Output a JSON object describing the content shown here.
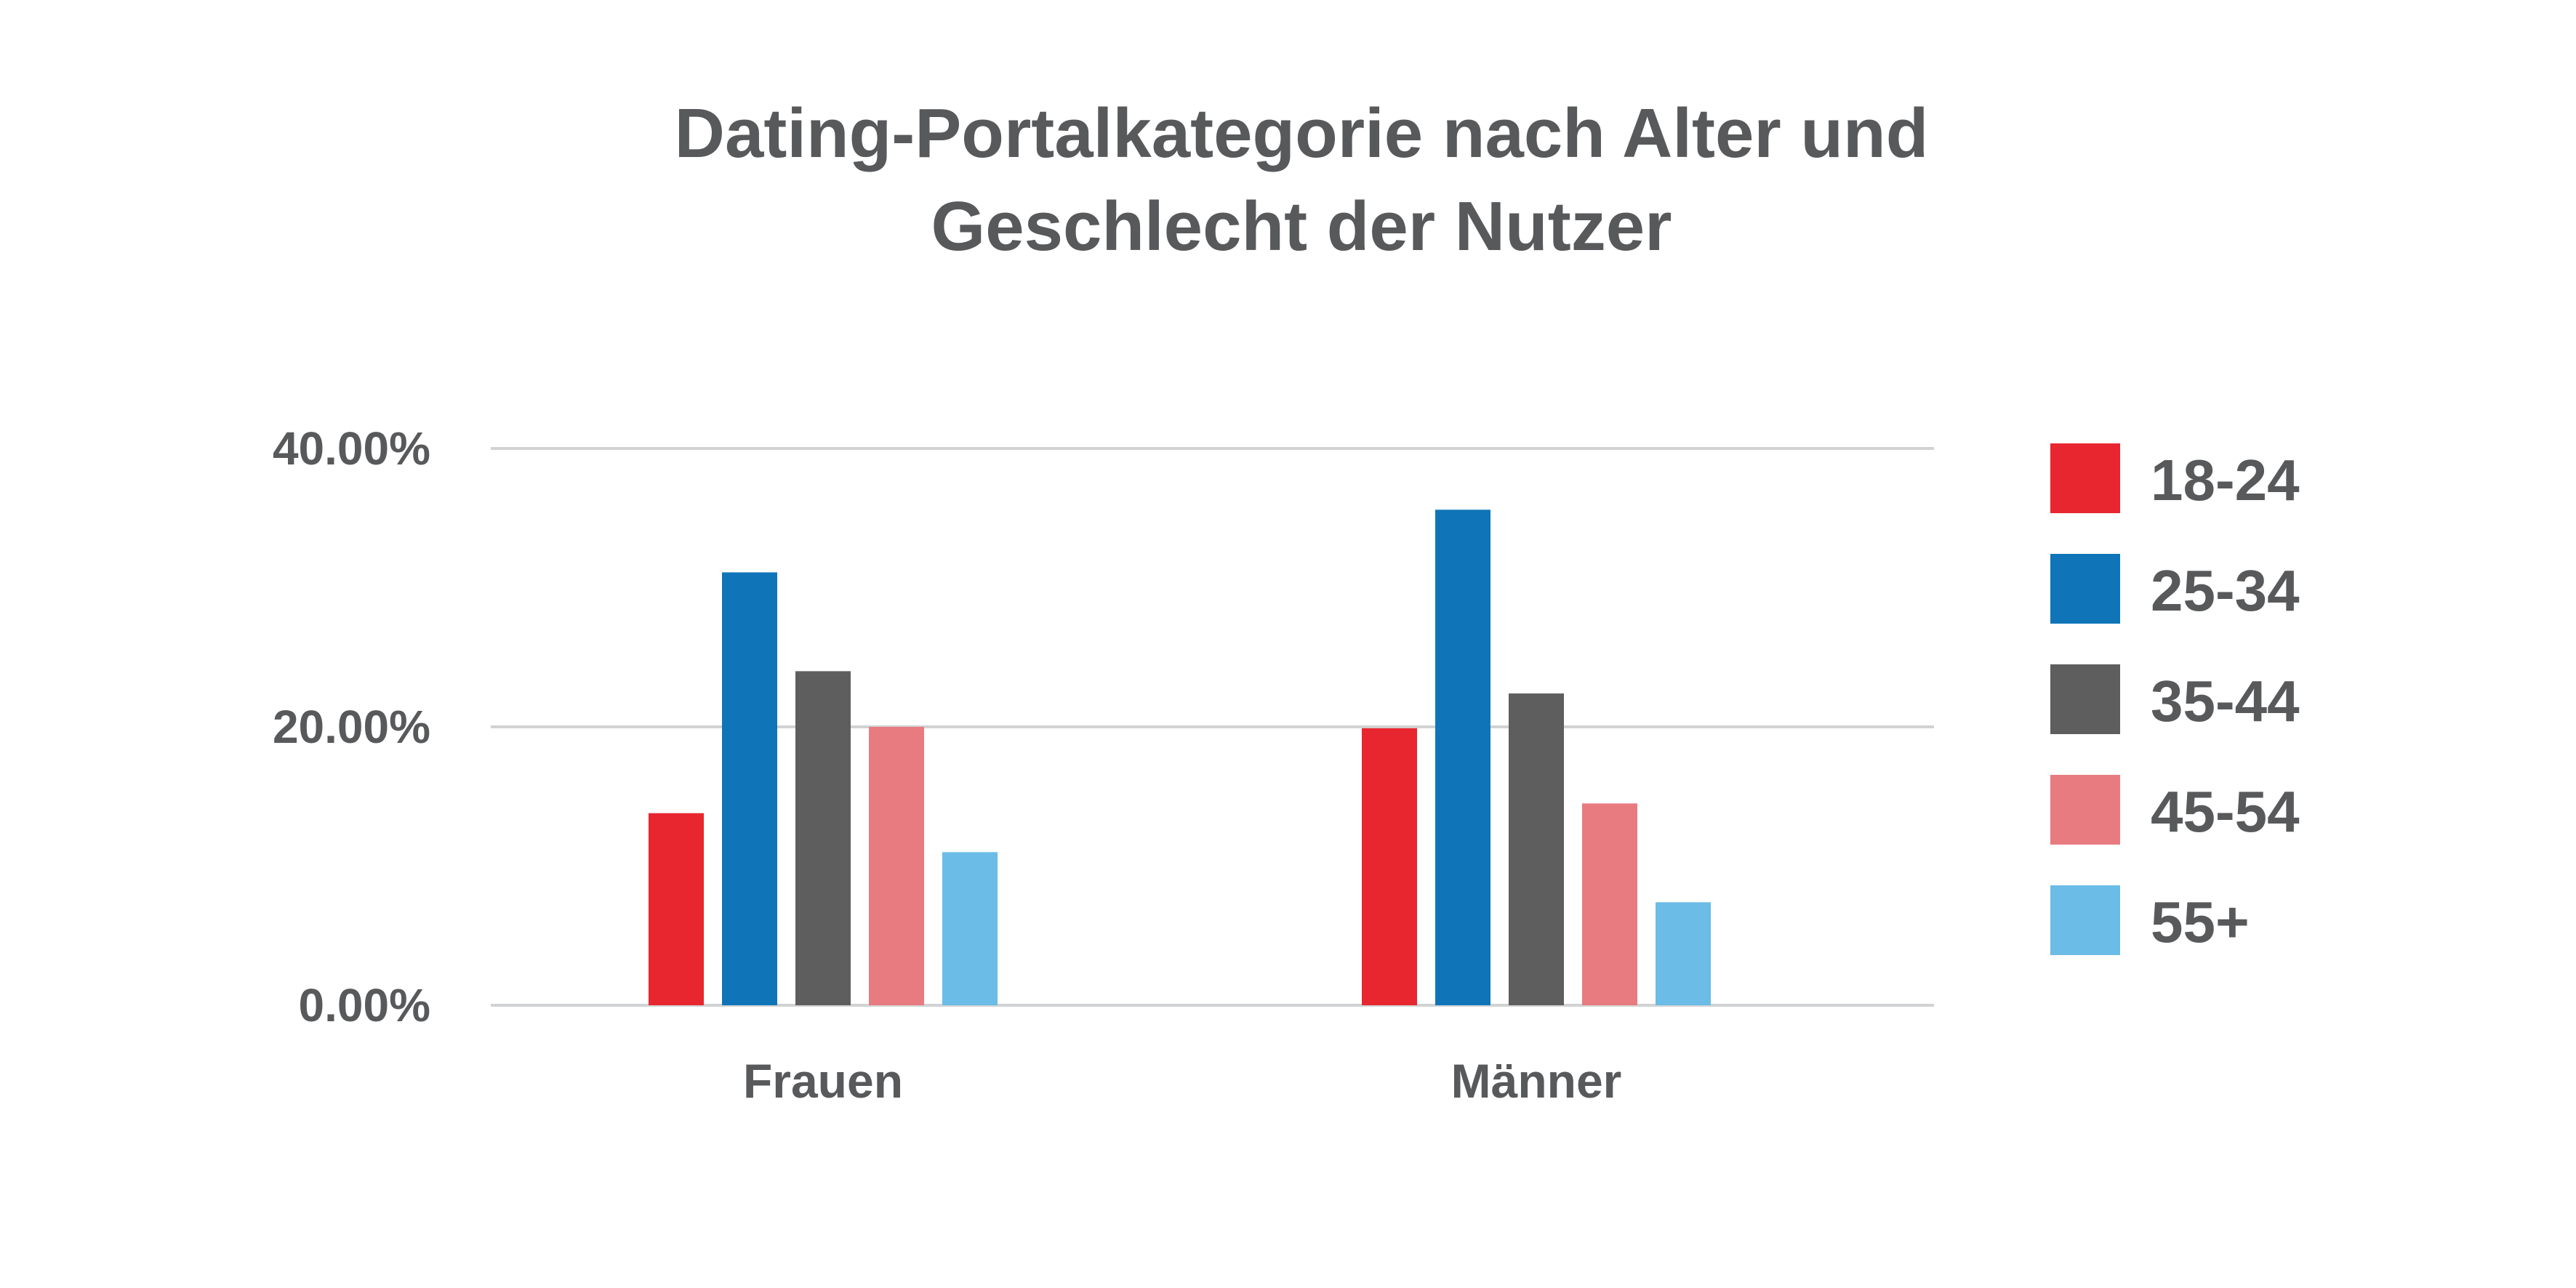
{
  "chart_data": {
    "type": "bar",
    "title_lines": [
      "Dating-Portalkategorie nach Alter und",
      "Geschlecht der Nutzer"
    ],
    "categories": [
      "Frauen",
      "Männer"
    ],
    "series": [
      {
        "name": "18-24",
        "color": "#e8262f",
        "values": [
          13.8,
          19.9
        ]
      },
      {
        "name": "25-34",
        "color": "#0f75b8",
        "values": [
          31.1,
          35.6
        ]
      },
      {
        "name": "35-44",
        "color": "#5e5e5e",
        "values": [
          24.0,
          22.4
        ]
      },
      {
        "name": "45-54",
        "color": "#e87b80",
        "values": [
          20.0,
          14.5
        ]
      },
      {
        "name": "55+",
        "color": "#6bbce6",
        "values": [
          11.0,
          7.4
        ]
      }
    ],
    "yticks": [
      {
        "value": 0,
        "label": "0.00%"
      },
      {
        "value": 20,
        "label": "20.00%"
      },
      {
        "value": 40,
        "label": "40.00%"
      }
    ],
    "ylim": [
      0,
      40
    ],
    "grid": true,
    "legend_position": "right"
  }
}
